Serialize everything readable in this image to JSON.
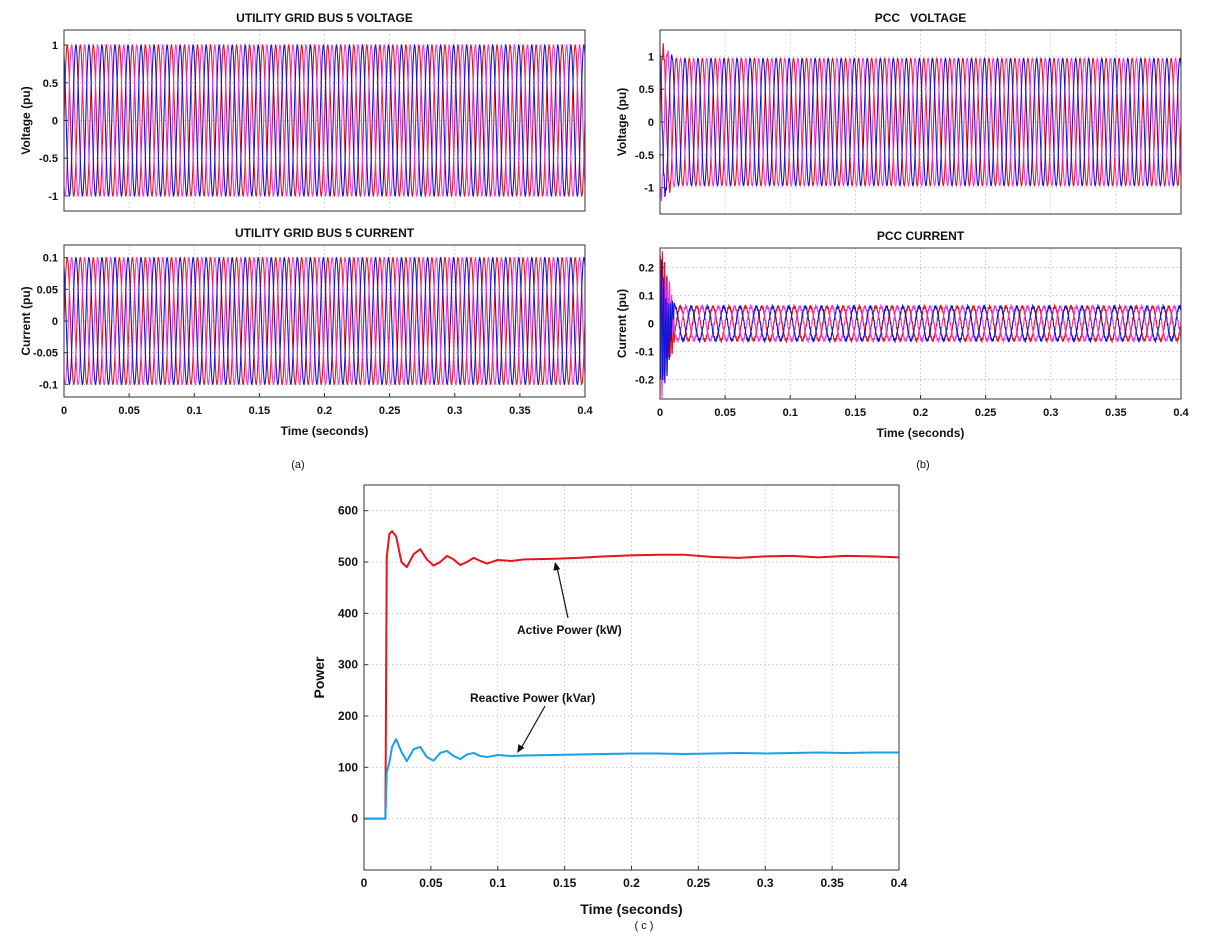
{
  "chart_data": [
    {
      "id": "a_voltage",
      "type": "line",
      "title": "UTILITY GRID BUS 5 VOLTAGE",
      "ylabel": "Voltage (pu)",
      "xlabel": "",
      "xlim": [
        0,
        0.4
      ],
      "ylim": [
        -1.2,
        1.2
      ],
      "yticks": [
        1,
        0.5,
        0,
        -0.5,
        -1
      ],
      "ytick_labels": [
        "1",
        "0.5",
        "0",
        "-0.5",
        "-1"
      ],
      "grid": true,
      "series": [
        {
          "color": "#e8141b",
          "waveform": "sine",
          "amplitude": 1.0,
          "frequency_hz": 100,
          "phase_deg": 0
        },
        {
          "color": "#e838e8",
          "waveform": "sine",
          "amplitude": 1.0,
          "frequency_hz": 100,
          "phase_deg": -120
        },
        {
          "color": "#1414d4",
          "waveform": "sine",
          "amplitude": 1.0,
          "frequency_hz": 100,
          "phase_deg": 120
        }
      ]
    },
    {
      "id": "a_current",
      "type": "line",
      "title": "UTILITY GRID BUS 5 CURRENT",
      "ylabel": "Current (pu)",
      "xlabel": "Time (seconds)",
      "xlim": [
        0,
        0.4
      ],
      "ylim": [
        -0.12,
        0.12
      ],
      "yticks": [
        0.1,
        0.05,
        0,
        -0.05,
        -0.1
      ],
      "ytick_labels": [
        "0.1",
        "0.05",
        "0",
        "-0.05",
        "-0.1"
      ],
      "xticks": [
        0,
        0.05,
        0.1,
        0.15,
        0.2,
        0.25,
        0.3,
        0.35,
        0.4
      ],
      "xtick_labels": [
        "0",
        "0.05",
        "0.1",
        "0.15",
        "0.2",
        "0.25",
        "0.3",
        "0.35",
        "0.4"
      ],
      "grid": true,
      "caption": "(a)",
      "series": [
        {
          "color": "#e8141b",
          "waveform": "sine",
          "amplitude": 0.1,
          "frequency_hz": 100,
          "phase_deg": 0
        },
        {
          "color": "#e838e8",
          "waveform": "sine",
          "amplitude": 0.1,
          "frequency_hz": 100,
          "phase_deg": -120
        },
        {
          "color": "#1414d4",
          "waveform": "sine",
          "amplitude": 0.1,
          "frequency_hz": 100,
          "phase_deg": 120
        }
      ]
    },
    {
      "id": "b_voltage",
      "type": "line",
      "title": "PCC   VOLTAGE",
      "ylabel": "Voltage (pu)",
      "xlabel": "",
      "xlim": [
        0,
        0.4
      ],
      "ylim": [
        -1.4,
        1.4
      ],
      "yticks": [
        1,
        0.5,
        0,
        -0.5,
        -1
      ],
      "ytick_labels": [
        "1",
        "0.5",
        "0",
        "-0.5",
        "-1"
      ],
      "grid": true,
      "transient": {
        "end_s": 0.012,
        "overshoot": 1.18
      },
      "series": [
        {
          "color": "#e8141b",
          "waveform": "sine",
          "amplitude": 0.97,
          "frequency_hz": 100,
          "phase_deg": 0
        },
        {
          "color": "#e838e8",
          "waveform": "sine",
          "amplitude": 0.97,
          "frequency_hz": 100,
          "phase_deg": -120
        },
        {
          "color": "#1414d4",
          "waveform": "sine",
          "amplitude": 0.97,
          "frequency_hz": 100,
          "phase_deg": 120
        }
      ]
    },
    {
      "id": "b_current",
      "type": "line",
      "title": "PCC CURRENT",
      "ylabel": "Current (pu)",
      "xlabel": "Time (seconds)",
      "xlim": [
        0,
        0.4
      ],
      "ylim": [
        -0.27,
        0.27
      ],
      "yticks": [
        0.2,
        0.1,
        0,
        -0.1,
        -0.2
      ],
      "ytick_labels": [
        "0.2",
        "0.1",
        "0",
        "-0.1",
        "-0.2"
      ],
      "xticks": [
        0,
        0.05,
        0.1,
        0.15,
        0.2,
        0.25,
        0.3,
        0.35,
        0.4
      ],
      "xtick_labels": [
        "0",
        "0.05",
        "0.1",
        "0.15",
        "0.2",
        "0.25",
        "0.3",
        "0.35",
        "0.4"
      ],
      "grid": true,
      "caption": "(b)",
      "transient": {
        "end_s": 0.012,
        "peak": 0.25
      },
      "series": [
        {
          "color": "#e8141b",
          "waveform": "sine",
          "amplitude": 0.06,
          "frequency_hz": 80,
          "phase_deg": 0
        },
        {
          "color": "#e838e8",
          "waveform": "sine",
          "amplitude": 0.06,
          "frequency_hz": 80,
          "phase_deg": -120
        },
        {
          "color": "#1414d4",
          "waveform": "sine",
          "amplitude": 0.06,
          "frequency_hz": 80,
          "phase_deg": 120
        }
      ]
    },
    {
      "id": "c_power",
      "type": "line",
      "title": "",
      "ylabel": "Power",
      "xlabel": "Time (seconds)",
      "xlim": [
        0,
        0.4
      ],
      "ylim": [
        -100,
        650
      ],
      "yticks": [
        600,
        500,
        400,
        300,
        200,
        100,
        0
      ],
      "ytick_labels": [
        "600",
        "500",
        "400",
        "300",
        "200",
        "100",
        "0"
      ],
      "xticks": [
        0,
        0.05,
        0.1,
        0.15,
        0.2,
        0.25,
        0.3,
        0.35,
        0.4
      ],
      "xtick_labels": [
        "0",
        "0.05",
        "0.1",
        "0.15",
        "0.2",
        "0.25",
        "0.3",
        "0.35",
        "0.4"
      ],
      "grid": true,
      "caption": "( c )",
      "series": [
        {
          "color": "#e8141b",
          "x": [
            0,
            0.016,
            0.017,
            0.019,
            0.021,
            0.024,
            0.028,
            0.032,
            0.037,
            0.042,
            0.047,
            0.052,
            0.057,
            0.062,
            0.067,
            0.072,
            0.077,
            0.082,
            0.087,
            0.092,
            0.1,
            0.11,
            0.12,
            0.14,
            0.16,
            0.18,
            0.2,
            0.22,
            0.24,
            0.26,
            0.28,
            0.3,
            0.32,
            0.34,
            0.36,
            0.38,
            0.4
          ],
          "y": [
            0,
            0,
            510,
            555,
            560,
            550,
            500,
            490,
            515,
            525,
            505,
            493,
            500,
            512,
            505,
            494,
            500,
            508,
            502,
            497,
            504,
            502,
            505,
            506,
            508,
            511,
            513,
            514,
            514,
            510,
            508,
            511,
            512,
            509,
            512,
            511,
            509
          ]
        },
        {
          "color": "#1aa0e8",
          "x": [
            0,
            0.016,
            0.017,
            0.019,
            0.021,
            0.024,
            0.028,
            0.032,
            0.037,
            0.042,
            0.047,
            0.052,
            0.057,
            0.062,
            0.067,
            0.072,
            0.077,
            0.082,
            0.087,
            0.092,
            0.1,
            0.11,
            0.12,
            0.14,
            0.16,
            0.18,
            0.2,
            0.22,
            0.24,
            0.26,
            0.28,
            0.3,
            0.32,
            0.34,
            0.36,
            0.38,
            0.4
          ],
          "y": [
            0,
            0,
            90,
            110,
            140,
            155,
            130,
            112,
            135,
            140,
            120,
            113,
            128,
            132,
            122,
            116,
            125,
            128,
            122,
            120,
            124,
            122,
            123,
            124,
            125,
            126,
            127,
            127,
            126,
            127,
            128,
            127,
            128,
            129,
            128,
            129,
            129
          ]
        }
      ],
      "annotations": [
        {
          "text": "Active Power (kW)",
          "target_x": 0.142,
          "target_y": 506
        },
        {
          "text": "Reactive Power (kVar)",
          "target_x": 0.113,
          "target_y": 124
        }
      ]
    }
  ]
}
